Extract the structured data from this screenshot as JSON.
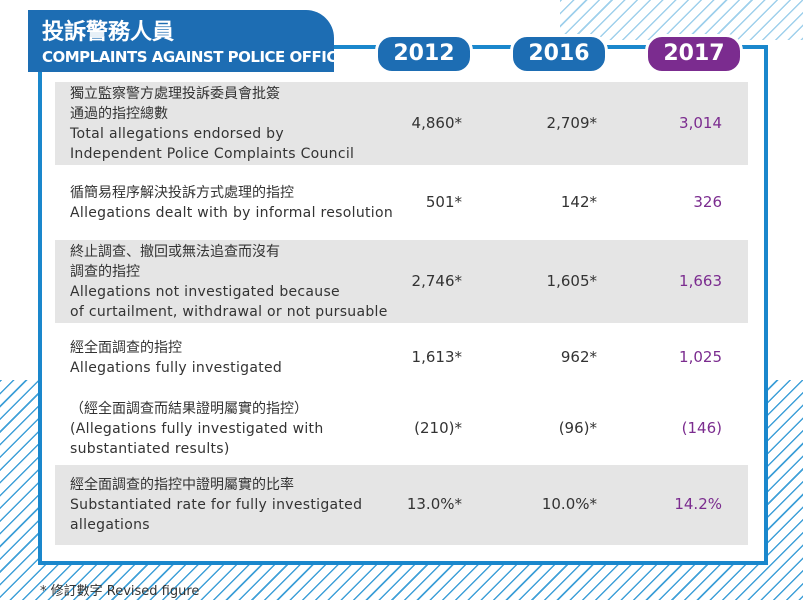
{
  "header": {
    "title_zh": "投訴警務人員",
    "title_en": "COMPLAINTS AGAINST POLICE OFFICERS"
  },
  "table": {
    "columns": [
      "2012",
      "2016",
      "2017"
    ],
    "rows": [
      {
        "label": [
          "獨立監察警方處理投訴委員會批簽",
          "通過的指控總數",
          "Total allegations endorsed by",
          "Independent Police Complaints Council"
        ],
        "cells": [
          "4,860*",
          "2,709*",
          "3,014"
        ]
      },
      {
        "label": [
          "循簡易程序解決投訴方式處理的指控",
          "Allegations dealt with by informal resolution"
        ],
        "cells": [
          "501*",
          "142*",
          "326"
        ]
      },
      {
        "label": [
          "終止調查、撤回或無法追查而沒有",
          "調查的指控",
          "Allegations not investigated because",
          "of curtailment, withdrawal or not pursuable"
        ],
        "cells": [
          "2,746*",
          "1,605*",
          "1,663"
        ]
      },
      {
        "label": [
          "經全面調查的指控",
          "Allegations fully investigated"
        ],
        "cells": [
          "1,613*",
          "962*",
          "1,025"
        ]
      },
      {
        "label": [
          "（經全面調查而結果證明屬實的指控）",
          "(Allegations fully investigated with",
          "substantiated results)"
        ],
        "cells": [
          "(210)*",
          "(96)*",
          "(146)"
        ]
      },
      {
        "label": [
          "經全面調查的指控中證明屬實的比率",
          "Substantiated rate for fully investigated",
          "allegations"
        ],
        "cells": [
          "13.0%*",
          "10.0%*",
          "14.2%"
        ]
      }
    ]
  },
  "footnote": "* 修訂數字 Revised figure"
}
